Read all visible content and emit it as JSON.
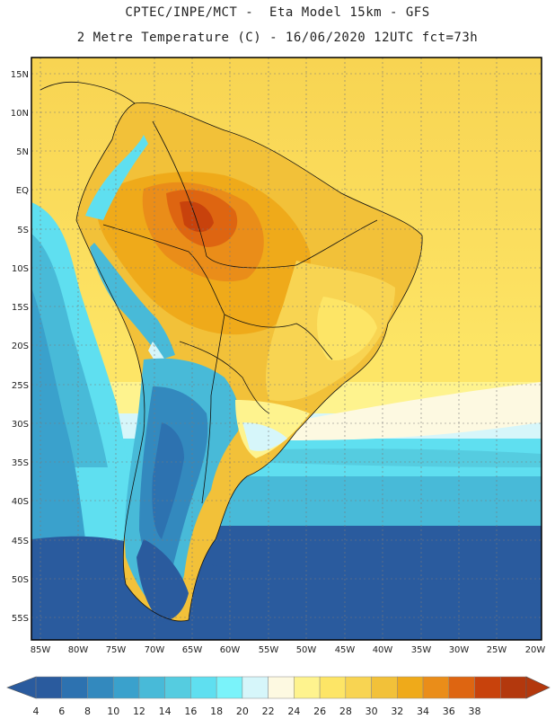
{
  "header": {
    "line1": "CPTEC/INPE/MCT -  Eta Model 15km - GFS",
    "line2": "2 Metre Temperature (C) - 16/06/2020 12UTC fct=73h"
  },
  "map": {
    "lat_labels": [
      "15N",
      "10N",
      "5N",
      "EQ",
      "5S",
      "10S",
      "15S",
      "20S",
      "25S",
      "30S",
      "35S",
      "40S",
      "45S",
      "50S",
      "55S"
    ],
    "lon_labels": [
      "85W",
      "80W",
      "75W",
      "70W",
      "65W",
      "60W",
      "55W",
      "50W",
      "45W",
      "40W",
      "35W",
      "30W",
      "25W",
      "20W"
    ]
  },
  "colorbar": {
    "ticks": [
      "4",
      "6",
      "8",
      "10",
      "12",
      "14",
      "16",
      "18",
      "20",
      "22",
      "24",
      "26",
      "28",
      "30",
      "32",
      "34",
      "36",
      "38"
    ],
    "colors": [
      "#2a5b9e",
      "#2d72b0",
      "#3389be",
      "#3aa1cc",
      "#48bad8",
      "#55cce0",
      "#5fdff0",
      "#7af3fa",
      "#d6f6fa",
      "#fdf9e1",
      "#fef38e",
      "#fde566",
      "#f8d452",
      "#f2c139",
      "#efaa1a",
      "#ea8d19",
      "#de6511",
      "#c8420c",
      "#b3380d"
    ]
  }
}
